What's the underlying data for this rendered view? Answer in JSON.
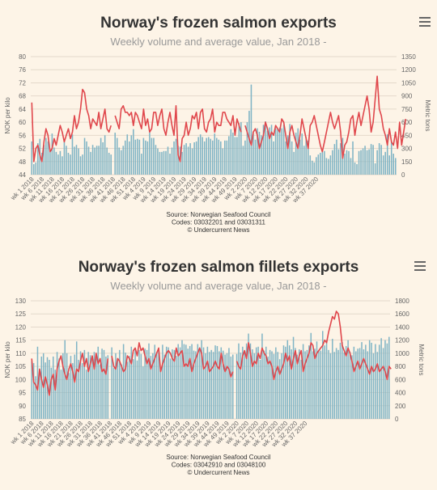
{
  "chart_data": [
    {
      "type": "bar+line",
      "title": "Norway's frozen salmon exports",
      "subtitle": "Weekly volume and average value, Jan 2018 -",
      "ylabel_left": "NOK per kilo",
      "ylabel_right": "Metric tons",
      "y_left_range": [
        44,
        80
      ],
      "y_left_ticks": [
        "44",
        "48",
        "52",
        "56",
        "60",
        "64",
        "68",
        "72",
        "76",
        "80"
      ],
      "y_right_range": [
        0,
        1350
      ],
      "y_right_ticks": [
        "0",
        "150",
        "300",
        "450",
        "600",
        "750",
        "900",
        "1050",
        "1200",
        "1350"
      ],
      "x_tick_labels": [
        "wk 1 2018",
        "wk 6 2018",
        "wk 11 2018",
        "wk 16 2018",
        "wk 21 2018",
        "wk 26 2018",
        "wk 31 2018",
        "wk 36 2018",
        "wk 41 2018",
        "wk 46 2018",
        "wk 51 2018",
        "wk 4 2019",
        "wk 9 2019",
        "wk 14 2019",
        "wk 19 2019",
        "wk 24 2019",
        "wk 29 2019",
        "wk 34 2019",
        "wk 39 2019",
        "wk 44 2019",
        "wk 49 2019",
        "wk 2 2020",
        "wk 7 2020",
        "wk 12 2020",
        "wk 17 2020",
        "wk 22 2020",
        "wk 27 2020",
        "wk 32 2020",
        "wk 37 2020"
      ],
      "grid": true,
      "legend": "none",
      "credits": [
        "Source: Norwegian Seafood Council",
        "Codes: 03032201 and 03031311",
        "© Undercurrent News"
      ],
      "series": [
        {
          "kind": "bar",
          "axis": "right",
          "values": [
            380,
            120,
            140,
            360,
            410,
            250,
            340,
            420,
            380,
            280,
            470,
            310,
            260,
            230,
            270,
            210,
            410,
            330,
            250,
            230,
            460,
            320,
            340,
            300,
            210,
            230,
            420,
            380,
            320,
            260,
            340,
            310,
            330,
            330,
            420,
            370,
            450,
            310,
            250,
            230,
            0,
            480,
            420,
            310,
            280,
            330,
            390,
            460,
            380,
            450,
            520,
            400,
            410,
            400,
            240,
            420,
            390,
            380,
            480,
            420,
            420,
            340,
            300,
            260,
            260,
            270,
            270,
            320,
            240,
            310,
            380,
            410,
            330,
            320,
            260,
            340,
            360,
            320,
            360,
            300,
            370,
            380,
            430,
            460,
            430,
            380,
            420,
            430,
            410,
            390,
            470,
            420,
            400,
            380,
            300,
            390,
            390,
            440,
            520,
            480,
            430,
            430,
            590,
            600,
            330,
            390,
            600,
            730,
            1030,
            470,
            400,
            530,
            490,
            450,
            570,
            610,
            500,
            540,
            570,
            380,
            530,
            520,
            540,
            530,
            570,
            380,
            450,
            580,
            380,
            260,
            480,
            530,
            400,
            470,
            330,
            430,
            390,
            220,
            160,
            140,
            200,
            230,
            250,
            260,
            270,
            190,
            180,
            220,
            280,
            350,
            400,
            290,
            360,
            420,
            240,
            280,
            270,
            190,
            380,
            140,
            120,
            270,
            280,
            300,
            330,
            280,
            290,
            350,
            340,
            130,
            280,
            360,
            340,
            220,
            260,
            460,
            220,
            390,
            240,
            190
          ],
          "gaps": [
            40
          ]
        },
        {
          "kind": "line",
          "axis": "left",
          "values": [
            66,
            48,
            52,
            53,
            50,
            48,
            54,
            58,
            56,
            51,
            52,
            55,
            53,
            56,
            59,
            57,
            54,
            56,
            58,
            55,
            57,
            62,
            58,
            60,
            64,
            70,
            69,
            64,
            62,
            58,
            61,
            60,
            59,
            63,
            58,
            61,
            64,
            58,
            57,
            59,
            null,
            62,
            60,
            58,
            64,
            65,
            63,
            63,
            62,
            63,
            59,
            63,
            62,
            60,
            58,
            64,
            59,
            61,
            57,
            58,
            63,
            63,
            59,
            62,
            64,
            58,
            56,
            60,
            63,
            59,
            56,
            65,
            50,
            48,
            55,
            56,
            60,
            56,
            58,
            62,
            61,
            63,
            58,
            63,
            64,
            58,
            57,
            60,
            61,
            64,
            57,
            60,
            59,
            59,
            63,
            63,
            61,
            60,
            59,
            62,
            56,
            61,
            59,
            57,
            null,
            59,
            57,
            55,
            53,
            57,
            58,
            56,
            52,
            54,
            56,
            60,
            58,
            55,
            57,
            56,
            59,
            58,
            57,
            61,
            60,
            56,
            52,
            57,
            59,
            56,
            54,
            52,
            56,
            61,
            58,
            55,
            52,
            59,
            60,
            62,
            59,
            56,
            53,
            51,
            54,
            57,
            60,
            63,
            60,
            58,
            60,
            62,
            57,
            49,
            53,
            54,
            57,
            61,
            62,
            56,
            60,
            63,
            59,
            62,
            65,
            68,
            64,
            57,
            60,
            67,
            74,
            64,
            62,
            58,
            56,
            53,
            58,
            54,
            53,
            57,
            52,
            60,
            53,
            57,
            61
          ]
        }
      ]
    },
    {
      "type": "bar+line",
      "title": "Norway's frozen salmon fillets exports",
      "subtitle": "Weekly volume and average value, Jan 2018 -",
      "ylabel_left": "NOK per kilo",
      "ylabel_right": "Metric tons",
      "y_left_range": [
        85,
        130
      ],
      "y_left_ticks": [
        "85",
        "90",
        "95",
        "100",
        "105",
        "110",
        "115",
        "120",
        "125",
        "130"
      ],
      "y_right_range": [
        0,
        1800
      ],
      "y_right_ticks": [
        "0",
        "200",
        "400",
        "600",
        "800",
        "1000",
        "1200",
        "1400",
        "1600",
        "1800"
      ],
      "x_tick_labels": [
        "wk 1 2018",
        "wk 6 2018",
        "wk 11 2018",
        "wk 16 2018",
        "wk 21 2018",
        "wk 26 2018",
        "wk 31 2018",
        "wk 36 2018",
        "wk 41 2018",
        "wk 46 2018",
        "wk 51 2018",
        "wk 4 2019",
        "wk 9 2019",
        "wk 14 2019",
        "wk 19 2019",
        "wk 24 2019",
        "wk 29 2019",
        "wk 34 2019",
        "wk 39 2019",
        "wk 44 2019",
        "wk 49 2019",
        "wk 2 2020",
        "wk 7 2020",
        "wk 12 2020",
        "wk 17 2020",
        "wk 22 2020",
        "wk 27 2020",
        "wk 32 2020",
        "wk 37 2020"
      ],
      "grid": true,
      "legend": "none",
      "credits": [
        "Source: Norwegian Seafood Council",
        "Codes: 03042910 and 03048100",
        "© Undercurrent News"
      ],
      "series": [
        {
          "kind": "bar",
          "axis": "right",
          "values": [
            880,
            850,
            650,
            1100,
            750,
            950,
            1000,
            860,
            940,
            900,
            780,
            950,
            750,
            1020,
            920,
            750,
            1000,
            1200,
            1000,
            700,
            960,
            850,
            980,
            1180,
            900,
            1030,
            850,
            1050,
            750,
            1020,
            970,
            900,
            1020,
            980,
            1100,
            830,
            1070,
            1050,
            950,
            970,
            0,
            1090,
            780,
            1000,
            900,
            1050,
            830,
            1140,
            1010,
            870,
            960,
            1100,
            910,
            1060,
            890,
            1050,
            990,
            800,
            1070,
            1050,
            1150,
            960,
            1000,
            1130,
            1020,
            1060,
            740,
            1130,
            980,
            1100,
            1090,
            920,
            1060,
            1050,
            960,
            1140,
            1090,
            1200,
            1140,
            1130,
            1070,
            1110,
            1140,
            1040,
            1030,
            1140,
            1090,
            1200,
            1090,
            1000,
            1100,
            1020,
            1050,
            1020,
            1120,
            1110,
            1030,
            1090,
            1040,
            980,
            1000,
            1080,
            950,
            980,
            0,
            990,
            1150,
            1010,
            1100,
            1020,
            1150,
            1300,
            1150,
            1060,
            1000,
            1090,
            1100,
            900,
            1300,
            1040,
            1100,
            950,
            1050,
            1030,
            990,
            1090,
            1020,
            910,
            1000,
            1120,
            1100,
            1200,
            1120,
            1060,
            1250,
            1080,
            980,
            1060,
            900,
            1140,
            1030,
            1050,
            1120,
            1310,
            1030,
            1070,
            1180,
            1050,
            1040,
            1340,
            1120,
            1200,
            1050,
            1000,
            1220,
            1020,
            1080,
            1050,
            1160,
            1170,
            1010,
            1110,
            1200,
            1020,
            970,
            1100,
            1030,
            1070,
            1080,
            1170,
            1060,
            1130,
            1030,
            1200,
            1160,
            1000,
            1140,
            1020,
            1130,
            1230,
            1080,
            1200,
            1150,
            1250
          ],
          "gaps": [
            40,
            104
          ]
        },
        {
          "kind": "line",
          "axis": "left",
          "values": [
            108,
            99,
            98,
            96,
            104,
            100,
            97,
            101,
            98,
            94,
            100,
            102,
            96,
            104,
            107,
            109,
            105,
            102,
            100,
            104,
            106,
            103,
            99,
            104,
            103,
            107,
            110,
            105,
            108,
            103,
            106,
            109,
            104,
            110,
            106,
            108,
            103,
            104,
            102,
            108,
            null,
            109,
            105,
            104,
            108,
            107,
            105,
            103,
            104,
            109,
            108,
            106,
            111,
            112,
            109,
            114,
            111,
            112,
            109,
            106,
            108,
            104,
            106,
            108,
            110,
            112,
            103,
            106,
            108,
            110,
            111,
            110,
            108,
            107,
            112,
            109,
            110,
            111,
            105,
            106,
            105,
            108,
            103,
            106,
            108,
            110,
            112,
            110,
            104,
            105,
            107,
            103,
            104,
            105,
            107,
            105,
            104,
            110,
            106,
            103,
            105,
            104,
            101,
            103,
            null,
            107,
            105,
            104,
            109,
            111,
            108,
            114,
            110,
            105,
            107,
            106,
            110,
            108,
            112,
            110,
            109,
            106,
            107,
            105,
            100,
            103,
            105,
            102,
            104,
            106,
            110,
            107,
            109,
            104,
            108,
            111,
            106,
            109,
            111,
            103,
            106,
            108,
            110,
            114,
            113,
            108,
            110,
            111,
            112,
            113,
            115,
            114,
            118,
            121,
            124,
            123,
            126,
            125,
            120,
            113,
            111,
            109,
            112,
            110,
            107,
            103,
            105,
            107,
            104,
            106,
            108,
            106,
            104,
            102,
            105,
            103,
            104,
            106,
            103,
            104,
            105,
            103,
            100,
            105,
            104
          ]
        }
      ]
    }
  ],
  "colors": {
    "bar": "#7fb4c5",
    "line": "#e0474c",
    "grid": "#e4d9cb",
    "background": "#fdf4e7"
  },
  "icons": {
    "menu": "hamburger-menu-icon"
  }
}
